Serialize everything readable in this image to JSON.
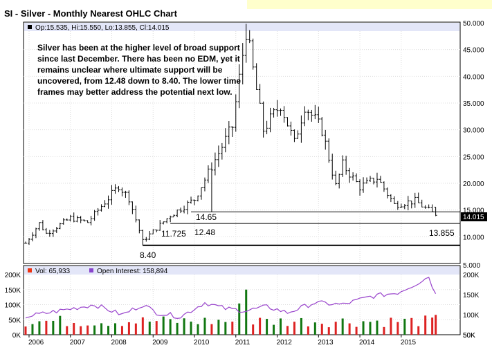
{
  "title": "SI - Silver - Monthly Nearest OHLC Chart",
  "annotation": "Silver has been at the higher level of broad support since last December.  There has been no EDM, yet it remains unclear where ultimate support will be uncovered, from 12.48 down to 8.40.  The lower time frames may better address the potential next low.",
  "price_panel": {
    "legend": "Op:15.535, Hi:15.550, Lo:13.855, Cl:14.015",
    "last_price_label": "14.015",
    "y_ticks": [
      "50.000",
      "45.000",
      "40.000",
      "35.000",
      "30.000",
      "25.000",
      "20.000",
      "15.000",
      "10.000",
      "5.000"
    ],
    "levels": [
      {
        "value": 14.65,
        "label": "14.65"
      },
      {
        "value": 12.48,
        "label": "12.48"
      },
      {
        "value": 8.4,
        "label": "8.40"
      }
    ],
    "extra_labels": [
      "11.725",
      "13.855"
    ]
  },
  "volume_panel": {
    "vol_label": "Vol: 65,933",
    "oi_label": "Open Interest: 158,894",
    "left_ticks": [
      "200K",
      "150K",
      "100K",
      "50K",
      "0K"
    ],
    "right_ticks": [
      "200K",
      "150K",
      "100K",
      "50K"
    ]
  },
  "x_ticks": [
    "2006",
    "2007",
    "2008",
    "2009",
    "2010",
    "2011",
    "2012",
    "2013",
    "2014",
    "2015"
  ],
  "colors": {
    "panel_bg": "#e3e6f8",
    "up_volume": "#117711",
    "down_volume": "#dd2222",
    "open_interest": "#9944cc",
    "vol_swatch": "#ee3311",
    "oi_swatch": "#8844cc"
  },
  "chart_data": {
    "type": "ohlc",
    "title": "SI - Silver - Monthly Nearest OHLC Chart",
    "x_axis": "date",
    "price_ylim": [
      5,
      50
    ],
    "closes_anchor": [
      [
        "2005-12",
        8.8
      ],
      [
        "2006-04",
        12.5
      ],
      [
        "2006-06",
        10.6
      ],
      [
        "2007-01",
        13.5
      ],
      [
        "2007-06",
        12.7
      ],
      [
        "2008-03",
        19.5
      ],
      [
        "2008-06",
        17.2
      ],
      [
        "2008-10",
        9.2
      ],
      [
        "2009-06",
        14.0
      ],
      [
        "2010-01",
        17.0
      ],
      [
        "2010-12",
        30.6
      ],
      [
        "2011-04",
        48.6
      ],
      [
        "2011-09",
        30.0
      ],
      [
        "2012-02",
        34.8
      ],
      [
        "2012-06",
        27.5
      ],
      [
        "2012-09",
        34.6
      ],
      [
        "2013-02",
        30.0
      ],
      [
        "2013-06",
        19.5
      ],
      [
        "2013-08",
        23.5
      ],
      [
        "2014-01",
        19.3
      ],
      [
        "2014-06",
        21.0
      ],
      [
        "2014-11",
        16.0
      ],
      [
        "2015-05",
        16.7
      ],
      [
        "2015-11",
        14.0
      ]
    ],
    "last_bar": {
      "open": 15.535,
      "high": 15.55,
      "low": 13.855,
      "close": 14.015
    },
    "support_levels": [
      14.65,
      12.48,
      8.4
    ],
    "volume_ylim": [
      0,
      200000
    ],
    "open_interest_ylim": [
      50000,
      200000
    ],
    "last_volume": 65933,
    "last_open_interest": 158894
  }
}
